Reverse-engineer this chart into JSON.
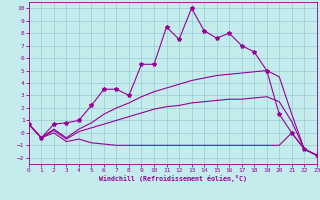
{
  "background_color": "#c4ecec",
  "grid_color": "#98ccd4",
  "line_color": "#990099",
  "xlabel": "Windchill (Refroidissement éolien,°C)",
  "xlim": [
    0,
    23
  ],
  "ylim": [
    -2.5,
    10.5
  ],
  "xticks": [
    0,
    1,
    2,
    3,
    4,
    5,
    6,
    7,
    8,
    9,
    10,
    11,
    12,
    13,
    14,
    15,
    16,
    17,
    18,
    19,
    20,
    21,
    22,
    23
  ],
  "yticks": [
    -2,
    -1,
    0,
    1,
    2,
    3,
    4,
    5,
    6,
    7,
    8,
    9,
    10
  ],
  "series": [
    {
      "x": [
        0,
        1,
        2,
        3,
        4,
        5,
        6,
        7,
        8,
        9,
        10,
        11,
        12,
        13,
        14,
        15,
        16,
        17,
        18,
        19,
        20,
        21,
        22,
        23
      ],
      "y": [
        0.7,
        -0.4,
        0.7,
        0.8,
        1.0,
        2.2,
        3.5,
        3.5,
        3.0,
        5.5,
        5.5,
        8.5,
        7.5,
        10.0,
        8.2,
        7.6,
        8.0,
        7.0,
        6.5,
        5.0,
        1.5,
        0.0,
        -1.3,
        -1.8
      ],
      "marker": true,
      "lw": 0.8
    },
    {
      "x": [
        0,
        1,
        2,
        3,
        4,
        5,
        6,
        7,
        8,
        9,
        10,
        11,
        12,
        13,
        14,
        15,
        16,
        17,
        18,
        19,
        20,
        21,
        22,
        23
      ],
      "y": [
        0.7,
        -0.4,
        0.3,
        -0.4,
        0.3,
        0.8,
        1.5,
        2.0,
        2.4,
        2.9,
        3.3,
        3.6,
        3.9,
        4.2,
        4.4,
        4.6,
        4.7,
        4.8,
        4.9,
        5.0,
        4.5,
        1.5,
        -1.3,
        -1.8
      ],
      "marker": false,
      "lw": 0.8
    },
    {
      "x": [
        0,
        1,
        2,
        3,
        4,
        5,
        6,
        7,
        8,
        9,
        10,
        11,
        12,
        13,
        14,
        15,
        16,
        17,
        18,
        19,
        20,
        21,
        22,
        23
      ],
      "y": [
        0.7,
        -0.4,
        0.2,
        -0.5,
        0.1,
        0.4,
        0.7,
        1.0,
        1.3,
        1.6,
        1.9,
        2.1,
        2.2,
        2.4,
        2.5,
        2.6,
        2.7,
        2.7,
        2.8,
        2.9,
        2.5,
        0.9,
        -1.3,
        -1.8
      ],
      "marker": false,
      "lw": 0.8
    },
    {
      "x": [
        0,
        1,
        2,
        3,
        4,
        5,
        6,
        7,
        8,
        9,
        10,
        11,
        12,
        13,
        14,
        15,
        16,
        17,
        18,
        19,
        20,
        21,
        22,
        23
      ],
      "y": [
        0.7,
        -0.4,
        0.0,
        -0.7,
        -0.5,
        -0.8,
        -0.9,
        -1.0,
        -1.0,
        -1.0,
        -1.0,
        -1.0,
        -1.0,
        -1.0,
        -1.0,
        -1.0,
        -1.0,
        -1.0,
        -1.0,
        -1.0,
        -1.0,
        0.0,
        -1.3,
        -1.8
      ],
      "marker": false,
      "lw": 0.8
    }
  ]
}
